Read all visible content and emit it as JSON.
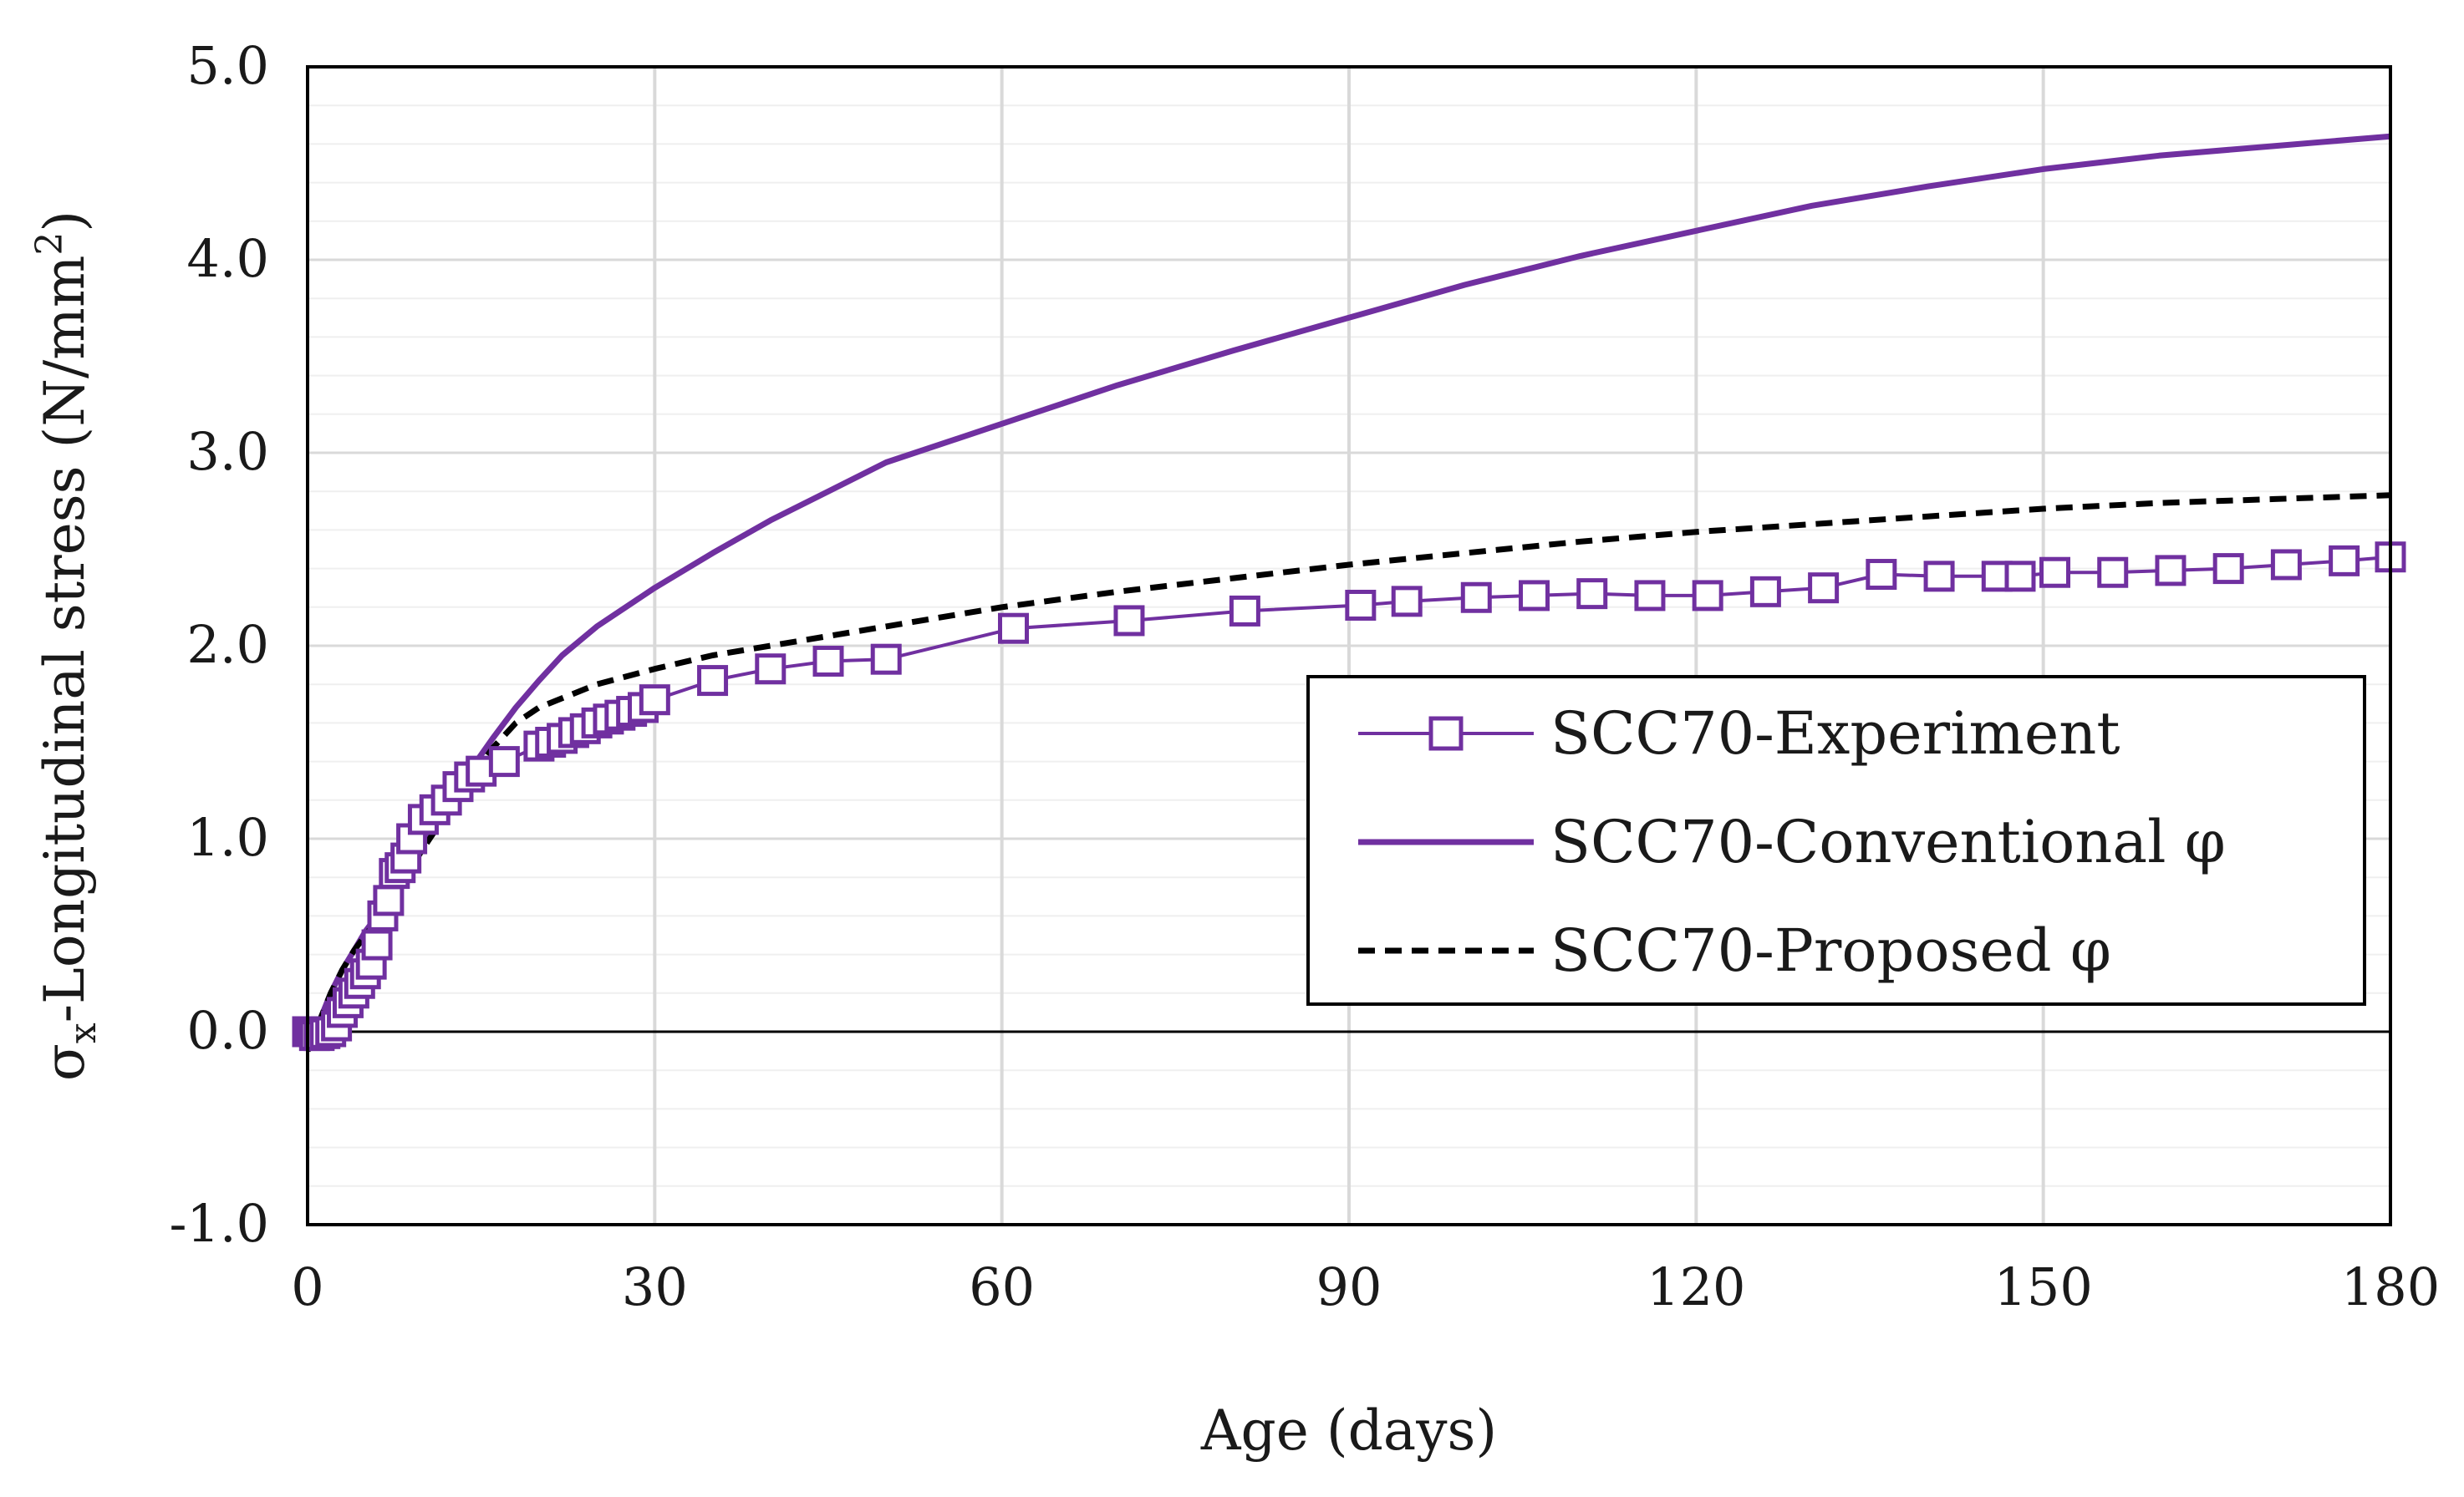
{
  "chart_data": {
    "type": "line",
    "title": "",
    "xlabel": "Age (days)",
    "ylabel_parts": {
      "symbol": "σ",
      "subscript": "x",
      "text": "-Longitudinal stress (N/mm",
      "superscript": "2",
      "close": ")"
    },
    "xlim": [
      0,
      180
    ],
    "ylim": [
      -1.0,
      5.0
    ],
    "x_ticks": [
      0,
      30,
      60,
      90,
      120,
      150,
      180
    ],
    "x_tick_labels": [
      "0",
      "30",
      "60",
      "90",
      "120",
      "150",
      "180"
    ],
    "y_ticks": [
      -1.0,
      0.0,
      1.0,
      2.0,
      3.0,
      4.0,
      5.0
    ],
    "y_tick_labels": [
      "-1.0",
      "0.0",
      "1.0",
      "2.0",
      "3.0",
      "4.0",
      "5.0"
    ],
    "y_minor_step": 0.2,
    "grid": true,
    "legend_position": "right-center",
    "colors": {
      "purple": "#7030a0",
      "black": "#000000",
      "grid_major": "#d9d9d9",
      "grid_minor": "#efefef"
    },
    "series": [
      {
        "name": "SCC70-Experiment",
        "style": "line-square-markers",
        "color": "#7030a0",
        "x": [
          0,
          0.3,
          0.6,
          1,
          1.5,
          2,
          2.5,
          3,
          3.5,
          4,
          4.5,
          5,
          5.5,
          6,
          6.5,
          7,
          7.5,
          8,
          8.5,
          9,
          10,
          11,
          12,
          13,
          14,
          15,
          17,
          20,
          21,
          22,
          23,
          24,
          25,
          26,
          27,
          28,
          29,
          30,
          35,
          40,
          45,
          50,
          61,
          71,
          81,
          91,
          95,
          101,
          106,
          111,
          116,
          121,
          126,
          131,
          136,
          141,
          146,
          148,
          151,
          156,
          161,
          166,
          171,
          176,
          180
        ],
        "values": [
          0.0,
          0.0,
          -0.02,
          -0.02,
          -0.01,
          0.0,
          0.03,
          0.1,
          0.15,
          0.2,
          0.25,
          0.3,
          0.35,
          0.45,
          0.6,
          0.68,
          0.82,
          0.85,
          0.9,
          1.0,
          1.1,
          1.15,
          1.2,
          1.27,
          1.32,
          1.35,
          1.4,
          1.48,
          1.5,
          1.52,
          1.55,
          1.57,
          1.6,
          1.62,
          1.64,
          1.66,
          1.68,
          1.72,
          1.82,
          1.88,
          1.92,
          1.93,
          2.09,
          2.13,
          2.18,
          2.21,
          2.23,
          2.25,
          2.26,
          2.27,
          2.26,
          2.26,
          2.28,
          2.3,
          2.37,
          2.36,
          2.36,
          2.36,
          2.38,
          2.38,
          2.39,
          2.4,
          2.42,
          2.44,
          2.46
        ]
      },
      {
        "name": "SCC70-Conventional φ",
        "style": "solid",
        "color": "#7030a0",
        "x": [
          0,
          1,
          2,
          3,
          4,
          5,
          6,
          8,
          10,
          12,
          14,
          16,
          18,
          20,
          22,
          25,
          30,
          35,
          40,
          45,
          50,
          60,
          70,
          80,
          90,
          100,
          110,
          120,
          130,
          140,
          150,
          160,
          170,
          180
        ],
        "values": [
          -0.1,
          0.05,
          0.2,
          0.32,
          0.42,
          0.52,
          0.6,
          0.8,
          1.0,
          1.18,
          1.35,
          1.52,
          1.68,
          1.82,
          1.95,
          2.1,
          2.3,
          2.48,
          2.65,
          2.8,
          2.95,
          3.15,
          3.35,
          3.53,
          3.7,
          3.87,
          4.02,
          4.15,
          4.28,
          4.38,
          4.47,
          4.54,
          4.59,
          4.64
        ]
      },
      {
        "name": "SCC70-Proposed φ",
        "style": "dashed",
        "color": "#000000",
        "x": [
          0,
          1,
          2,
          3,
          4,
          5,
          6,
          8,
          10,
          12,
          14,
          16,
          18,
          20,
          25,
          30,
          35,
          40,
          50,
          60,
          70,
          80,
          90,
          100,
          110,
          120,
          130,
          140,
          150,
          160,
          170,
          180
        ],
        "values": [
          -0.1,
          0.05,
          0.2,
          0.32,
          0.42,
          0.5,
          0.58,
          0.76,
          0.95,
          1.13,
          1.3,
          1.47,
          1.6,
          1.68,
          1.8,
          1.88,
          1.95,
          2.0,
          2.1,
          2.2,
          2.28,
          2.35,
          2.42,
          2.48,
          2.54,
          2.59,
          2.63,
          2.67,
          2.71,
          2.74,
          2.76,
          2.78
        ]
      }
    ]
  }
}
